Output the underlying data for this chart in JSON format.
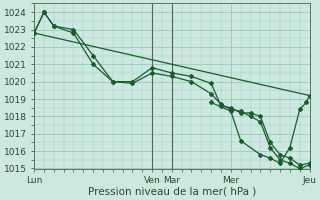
{
  "background_color": "#cce8e0",
  "grid_color": "#99ccbb",
  "line_color": "#1a5c2a",
  "marker_color": "#1a5c2a",
  "xlabel": "Pression niveau de la mer( hPa )",
  "ylim": [
    1015,
    1024.5
  ],
  "yticks": [
    1015,
    1016,
    1017,
    1018,
    1019,
    1020,
    1021,
    1022,
    1023,
    1024
  ],
  "xlim": [
    0,
    168
  ],
  "xtick_positions": [
    0,
    72,
    84,
    120,
    168
  ],
  "xtick_labels": [
    "Lun",
    "Ven",
    "Mar",
    "Mer",
    "Jeu"
  ],
  "series1": {
    "x": [
      0,
      6,
      12,
      24,
      36,
      48,
      60,
      72,
      84,
      96,
      108,
      114,
      120,
      126,
      132,
      138,
      144,
      150,
      156,
      162,
      168
    ],
    "y": [
      1022.8,
      1024.0,
      1023.2,
      1023.0,
      1021.5,
      1020.0,
      1020.0,
      1020.8,
      1020.5,
      1020.3,
      1019.9,
      1018.6,
      1018.5,
      1018.2,
      1018.2,
      1018.0,
      1016.5,
      1015.8,
      1015.6,
      1015.2,
      1015.3
    ]
  },
  "series2": {
    "x": [
      0,
      6,
      12,
      24,
      36,
      48,
      60,
      72,
      84,
      96,
      108,
      114,
      120,
      126,
      132,
      138,
      144,
      150,
      156,
      162,
      168
    ],
    "y": [
      1022.8,
      1024.0,
      1023.2,
      1022.8,
      1021.0,
      1020.0,
      1019.9,
      1020.5,
      1020.3,
      1020.0,
      1019.3,
      1018.7,
      1018.4,
      1018.3,
      1018.0,
      1017.7,
      1016.2,
      1015.5,
      1015.3,
      1015.0,
      1015.2
    ]
  },
  "series3": {
    "x": [
      0,
      168
    ],
    "y": [
      1022.8,
      1019.2
    ]
  },
  "series4": {
    "x": [
      108,
      120,
      126,
      138,
      144,
      150,
      156,
      162,
      166,
      168
    ],
    "y": [
      1018.8,
      1018.3,
      1016.6,
      1015.8,
      1015.6,
      1015.3,
      1016.2,
      1018.4,
      1018.8,
      1019.2
    ]
  },
  "vlines": [
    72,
    84
  ],
  "vline_color": "#556655"
}
